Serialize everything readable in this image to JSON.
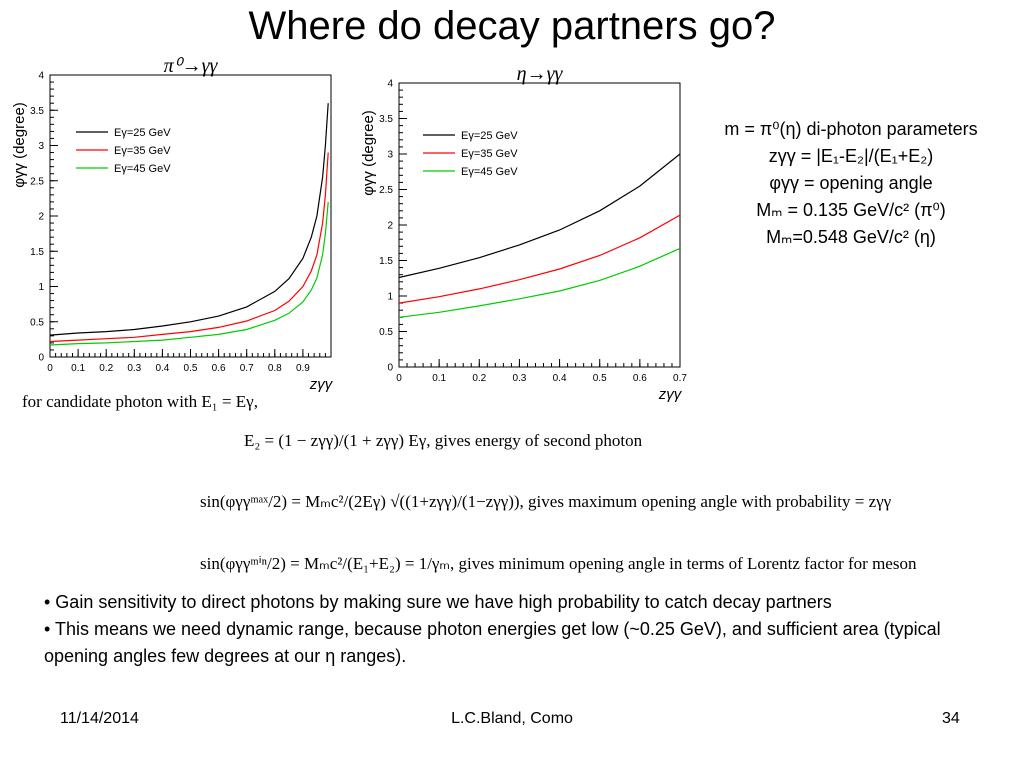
{
  "title": "Where do decay partners go?",
  "chart_data": [
    {
      "type": "line",
      "title": "π⁰→γγ",
      "xlabel": "zγγ",
      "ylabel": "φγγ (degree)",
      "xlim": [
        0,
        1.0
      ],
      "ylim": [
        0,
        4
      ],
      "xticks": [
        "0",
        "0.1",
        "0.2",
        "0.3",
        "0.4",
        "0.5",
        "0.6",
        "0.7",
        "0.8",
        "0.9"
      ],
      "yticks": [
        "0",
        "0.5",
        "1",
        "1.5",
        "2",
        "2.5",
        "3",
        "3.5",
        "4"
      ],
      "legend": "top-left",
      "x": [
        0,
        0.1,
        0.2,
        0.3,
        0.4,
        0.5,
        0.6,
        0.7,
        0.8,
        0.85,
        0.9,
        0.93,
        0.95,
        0.97,
        0.98,
        0.99
      ],
      "series": [
        {
          "name": "Eγ=25 GeV",
          "color": "#000000",
          "values": [
            0.31,
            0.34,
            0.36,
            0.39,
            0.44,
            0.5,
            0.58,
            0.71,
            0.93,
            1.11,
            1.4,
            1.7,
            2.0,
            2.55,
            3.0,
            3.6
          ]
        },
        {
          "name": "Eγ=35 GeV",
          "color": "#ff0000",
          "values": [
            0.22,
            0.24,
            0.26,
            0.28,
            0.32,
            0.36,
            0.42,
            0.51,
            0.66,
            0.79,
            1.0,
            1.22,
            1.45,
            1.9,
            2.3,
            2.9
          ]
        },
        {
          "name": "Eγ=45 GeV",
          "color": "#00cc00",
          "values": [
            0.17,
            0.19,
            0.2,
            0.22,
            0.24,
            0.28,
            0.32,
            0.39,
            0.52,
            0.62,
            0.78,
            0.95,
            1.12,
            1.45,
            1.75,
            2.2
          ]
        }
      ]
    },
    {
      "type": "line",
      "title": "η→γγ",
      "xlabel": "zγγ",
      "ylabel": "φγγ (degree)",
      "xlim": [
        0,
        0.7
      ],
      "ylim": [
        0,
        4
      ],
      "xticks": [
        "0",
        "0.1",
        "0.2",
        "0.3",
        "0.4",
        "0.5",
        "0.6",
        "0.7"
      ],
      "yticks": [
        "0",
        "0.5",
        "1",
        "1.5",
        "2",
        "2.5",
        "3",
        "3.5",
        "4"
      ],
      "legend": "top-left",
      "x": [
        0,
        0.1,
        0.2,
        0.3,
        0.4,
        0.5,
        0.6,
        0.7
      ],
      "series": [
        {
          "name": "Eγ=25 GeV",
          "color": "#000000",
          "values": [
            1.26,
            1.39,
            1.54,
            1.72,
            1.93,
            2.2,
            2.55,
            3.0
          ]
        },
        {
          "name": "Eγ=35 GeV",
          "color": "#ff0000",
          "values": [
            0.9,
            0.99,
            1.1,
            1.23,
            1.38,
            1.57,
            1.82,
            2.14
          ]
        },
        {
          "name": "Eγ=45 GeV",
          "color": "#00cc00",
          "values": [
            0.7,
            0.77,
            0.86,
            0.96,
            1.07,
            1.22,
            1.42,
            1.67
          ]
        }
      ]
    }
  ],
  "params": {
    "m_def": "m = π⁰(η) di-photon parameters",
    "z_def": "zγγ = |E₁-E₂|/(E₁+E₂)",
    "phi_def": "φγγ = opening angle",
    "m_pi0": "Mₘ = 0.135 GeV/c² (π⁰)",
    "m_eta": "Mₘ=0.548 GeV/c² (η)"
  },
  "equations": {
    "eq1": "for candidate photon with E₁ = Eγ,",
    "eq2": "E₂ = (1 − zγγ)/(1 + zγγ) Eγ, gives energy of second photon",
    "eq3": "sin(φγγᵐᵃˣ/2) = Mₘc²/(2Eγ) √((1+zγγ)/(1−zγγ)), gives maximum opening angle with probability = zγγ",
    "eq4": "sin(φγγᵐⁱⁿ/2) = Mₘc²/(E₁+E₂) = 1/γₘ, gives minimum opening angle in terms of Lorentz factor for meson"
  },
  "bullets": [
    "•  Gain sensitivity to direct photons by making sure we have high probability to catch decay partners",
    "•  This means we need dynamic range, because photon energies get low (~0.25 GeV), and sufficient area (typical opening angles few degrees at our η ranges)."
  ],
  "footer": {
    "date": "11/14/2014",
    "author": "L.C.Bland, Como",
    "page": "34"
  }
}
